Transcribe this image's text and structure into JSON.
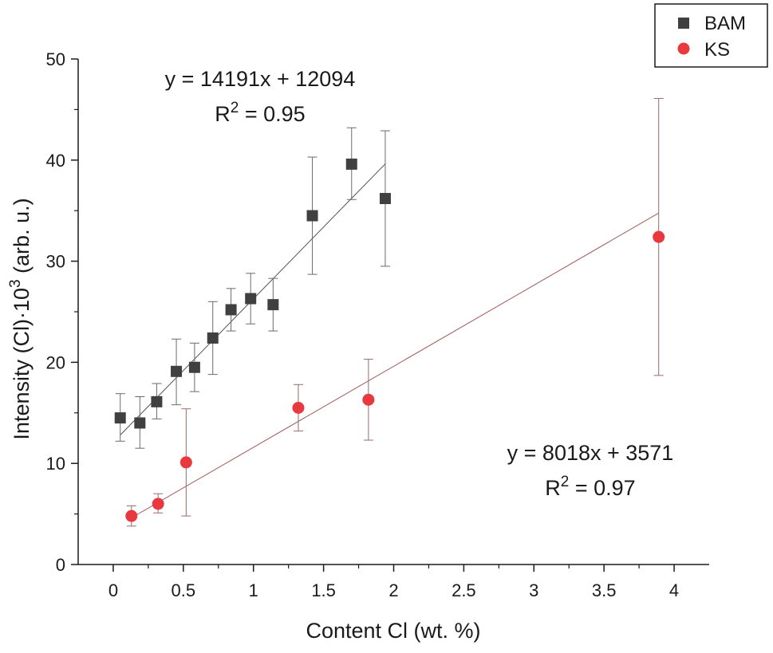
{
  "chart_data": {
    "type": "scatter",
    "title": "",
    "xlabel": "Content Cl (wt. %)",
    "ylabel": {
      "base": "Intensity (Cl)·10",
      "sup": "3",
      "suffix": " (arb. u.)"
    },
    "xlim": [
      -0.25,
      4.25
    ],
    "ylim": [
      0,
      50
    ],
    "xticks": [
      0,
      0.5,
      1,
      1.5,
      2,
      2.5,
      3,
      3.5,
      4
    ],
    "xtick_labels": [
      "0",
      "0.5",
      "1",
      "1.5",
      "2",
      "2.5",
      "3",
      "3.5",
      "4"
    ],
    "yticks": [
      0,
      10,
      20,
      30,
      40,
      50
    ],
    "ytick_labels": [
      "0",
      "10",
      "20",
      "30",
      "40",
      "50"
    ],
    "grid": false,
    "legend_position": "top-right",
    "series": [
      {
        "name": "BAM",
        "marker": "square",
        "color": "#404040",
        "fit_color": "#505050",
        "points": [
          {
            "x": 0.05,
            "y": 14.5,
            "ylo": 12.2,
            "yhi": 16.9
          },
          {
            "x": 0.19,
            "y": 14.0,
            "ylo": 11.5,
            "yhi": 16.6
          },
          {
            "x": 0.31,
            "y": 16.1,
            "ylo": 14.4,
            "yhi": 17.9
          },
          {
            "x": 0.45,
            "y": 19.1,
            "ylo": 15.8,
            "yhi": 22.3
          },
          {
            "x": 0.58,
            "y": 19.5,
            "ylo": 17.1,
            "yhi": 21.9
          },
          {
            "x": 0.71,
            "y": 22.4,
            "ylo": 18.8,
            "yhi": 26.0
          },
          {
            "x": 0.84,
            "y": 25.2,
            "ylo": 23.1,
            "yhi": 27.3
          },
          {
            "x": 0.98,
            "y": 26.3,
            "ylo": 23.8,
            "yhi": 28.8
          },
          {
            "x": 1.14,
            "y": 25.7,
            "ylo": 23.1,
            "yhi": 28.3
          },
          {
            "x": 1.42,
            "y": 34.5,
            "ylo": 28.7,
            "yhi": 40.3
          },
          {
            "x": 1.7,
            "y": 39.6,
            "ylo": 36.1,
            "yhi": 43.2
          },
          {
            "x": 1.94,
            "y": 36.2,
            "ylo": 29.5,
            "yhi": 42.9
          }
        ],
        "fit": {
          "slope": 14.191,
          "intercept": 12.094,
          "x_range": [
            0.05,
            1.94
          ]
        },
        "equation": "y = 14191x + 12094",
        "r2_prefix": "R",
        "r2_sup": "2",
        "r2_value": " = 0.95"
      },
      {
        "name": "KS",
        "marker": "circle",
        "color": "#e8393f",
        "fit_color": "#a35a5a",
        "points": [
          {
            "x": 0.13,
            "y": 4.8,
            "ylo": 3.8,
            "yhi": 5.8
          },
          {
            "x": 0.32,
            "y": 6.0,
            "ylo": 5.1,
            "yhi": 7.0
          },
          {
            "x": 0.52,
            "y": 10.1,
            "ylo": 4.8,
            "yhi": 15.4
          },
          {
            "x": 1.32,
            "y": 15.5,
            "ylo": 13.2,
            "yhi": 17.8
          },
          {
            "x": 1.82,
            "y": 16.3,
            "ylo": 12.3,
            "yhi": 20.3
          },
          {
            "x": 3.89,
            "y": 32.4,
            "ylo": 18.7,
            "yhi": 46.1
          }
        ],
        "fit": {
          "slope": 8.018,
          "intercept": 3.571,
          "x_range": [
            0.13,
            3.89
          ]
        },
        "equation": "y = 8018x + 3571",
        "r2_prefix": "R",
        "r2_sup": "2",
        "r2_value": " = 0.97"
      }
    ]
  }
}
